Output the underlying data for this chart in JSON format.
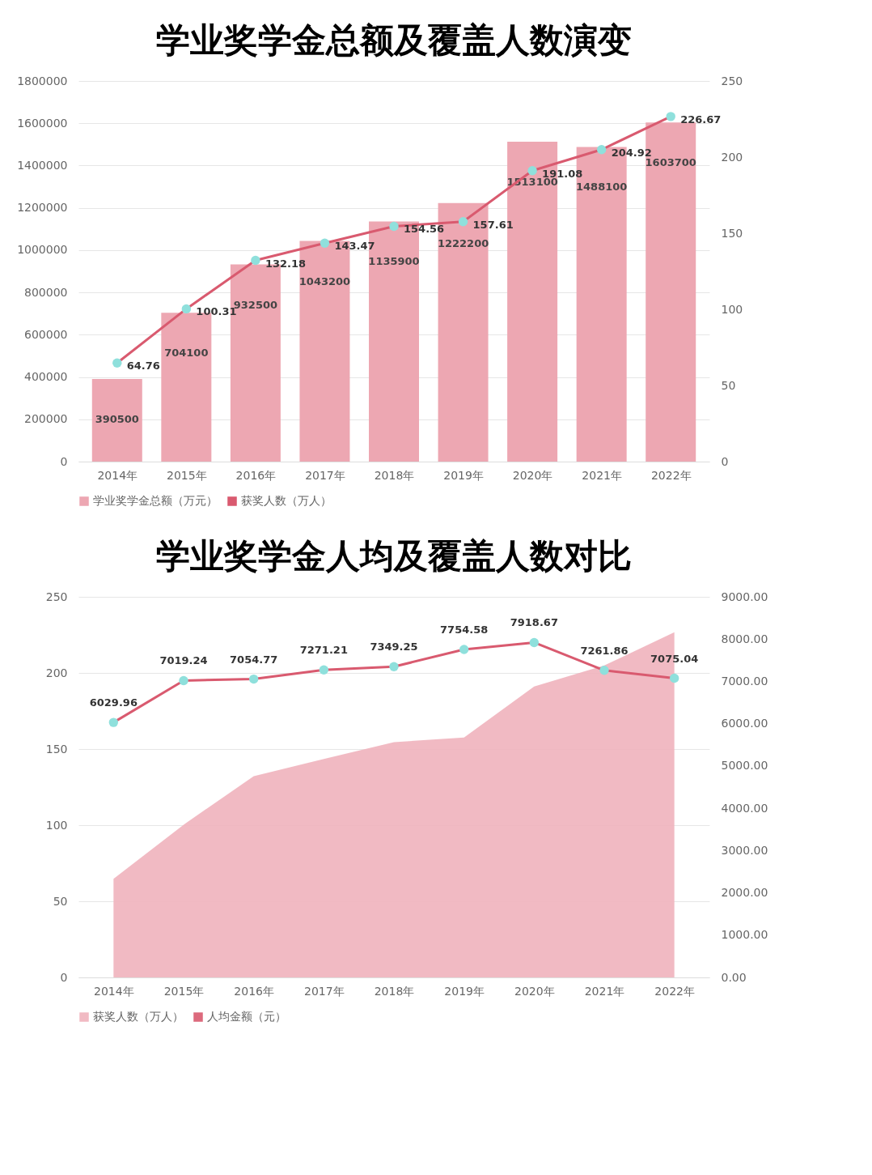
{
  "chart_data": [
    {
      "type": "bar",
      "title": "学业奖学金总额及覆盖人数演变",
      "categories": [
        "2014年",
        "2015年",
        "2016年",
        "2017年",
        "2018年",
        "2019年",
        "2020年",
        "2021年",
        "2022年"
      ],
      "series": [
        {
          "name": "学业奖学金总额（万元）",
          "type": "bar",
          "color": "#eda7b2",
          "values": [
            390500,
            704100,
            932500,
            1043200,
            1135900,
            1222200,
            1513100,
            1488100,
            1603700
          ]
        },
        {
          "name": "获奖人数（万人）",
          "type": "line",
          "axis": "y2",
          "color": "#d95a6f",
          "values": [
            64.76,
            100.31,
            132.18,
            143.47,
            154.56,
            157.61,
            191.08,
            204.92,
            226.67
          ]
        }
      ],
      "ylim": [
        0,
        1800000
      ],
      "yticks": [
        0,
        200000,
        400000,
        600000,
        800000,
        1000000,
        1200000,
        1400000,
        1600000,
        1800000
      ],
      "y2lim": [
        0,
        250
      ],
      "y2ticks": [
        0,
        50,
        100,
        150,
        200,
        250
      ],
      "data_labels": true,
      "grid": "y",
      "legend": "bottom",
      "marker": "circle",
      "line_style": "solid"
    },
    {
      "type": "area",
      "title": "学业奖学金人均及覆盖人数对比",
      "categories": [
        "2014年",
        "2015年",
        "2016年",
        "2017年",
        "2018年",
        "2019年",
        "2020年",
        "2021年",
        "2022年"
      ],
      "series": [
        {
          "name": "获奖人数（万人）",
          "type": "area",
          "color": "#f0b3bd",
          "values": [
            64.76,
            100.31,
            132.18,
            143.47,
            154.56,
            157.61,
            191.08,
            204.92,
            226.67
          ]
        },
        {
          "name": "人均金额（元）",
          "type": "line",
          "axis": "y2",
          "color": "#d95a6f",
          "marker": "circle",
          "line_style": "solid",
          "values": [
            6029.96,
            7019.24,
            7054.77,
            7271.21,
            7349.25,
            7754.58,
            7918.67,
            7261.86,
            7075.04
          ],
          "value_labels": [
            "6029.96",
            "7019.24",
            "7054.77",
            "7271.21",
            "7349.25",
            "7754.58",
            "7918.67",
            "7261.86",
            "7075.04"
          ]
        }
      ],
      "ylim": [
        0,
        250
      ],
      "yticks": [
        0,
        50,
        100,
        150,
        200,
        250
      ],
      "y2lim": [
        0,
        9000
      ],
      "y2ticks": [
        {
          "value": 0,
          "label": "0.00"
        },
        {
          "value": 1000,
          "label": "1000.00"
        },
        {
          "value": 2000,
          "label": "2000.00"
        },
        {
          "value": 3000,
          "label": "3000.00"
        },
        {
          "value": 4000,
          "label": "4000.00"
        },
        {
          "value": 5000,
          "label": "5000.00"
        },
        {
          "value": 6000,
          "label": "6000.00"
        },
        {
          "value": 7000,
          "label": "7000.00"
        },
        {
          "value": 8000,
          "label": "8000.00"
        },
        {
          "value": 9000,
          "label": "9000.00"
        }
      ],
      "grid": "y",
      "legend": "bottom"
    }
  ]
}
